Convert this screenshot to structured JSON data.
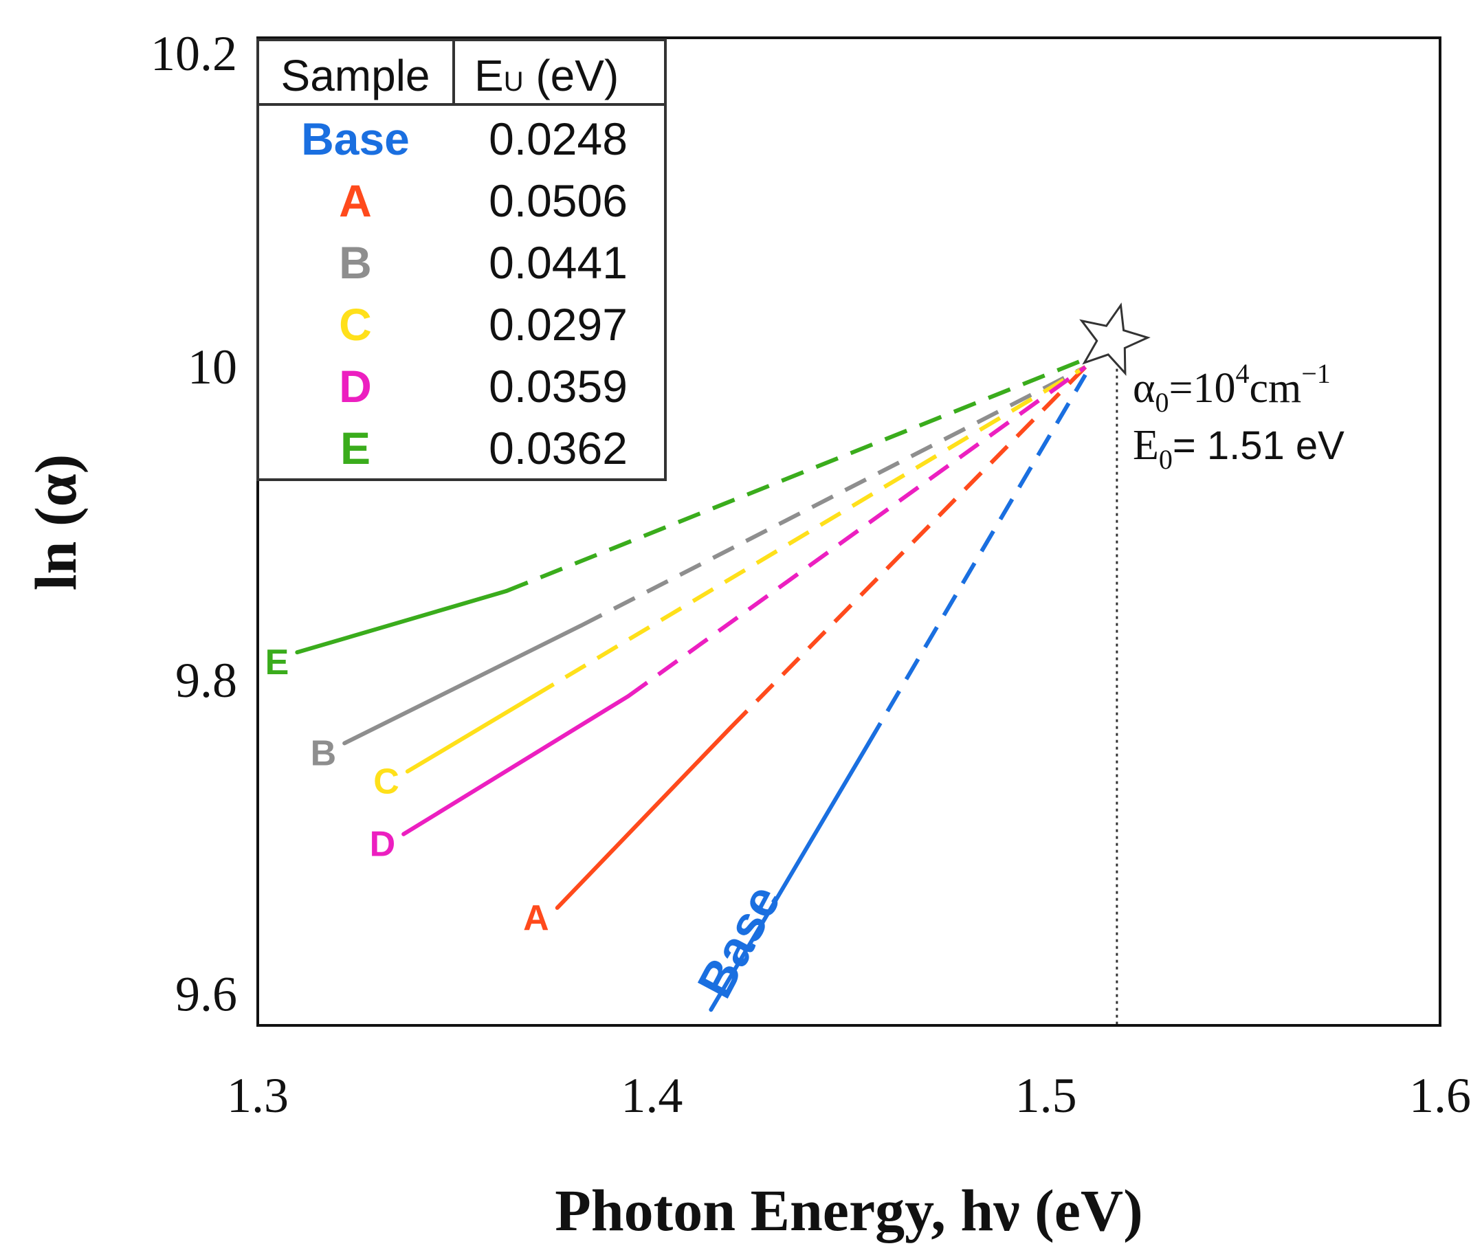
{
  "chart_data": {
    "type": "line",
    "xlabel": "Photon Energy, hν (eV)",
    "ylabel": "ln (α)",
    "xlim": [
      1.3,
      1.6
    ],
    "ylim": [
      9.58,
      10.21
    ],
    "xticks": [
      "1.3",
      "1.4",
      "1.5",
      "1.6"
    ],
    "yticks": [
      "9.6",
      "9.8",
      "10",
      "10.2"
    ],
    "grid": false,
    "legend_table": {
      "header": [
        "Sample",
        "E",
        "U",
        " (eV)"
      ],
      "rows": [
        {
          "name": "Base",
          "value": "0.0248",
          "color": "#1a6fe0"
        },
        {
          "name": "A",
          "value": "0.0506",
          "color": "#ff4a1c"
        },
        {
          "name": "B",
          "value": "0.0441",
          "color": "#8e8e8e"
        },
        {
          "name": "C",
          "value": "0.0297",
          "color": "#ffe01a"
        },
        {
          "name": "D",
          "value": "0.0359",
          "color": "#ec1fc0"
        },
        {
          "name": "E",
          "value": "0.0362",
          "color": "#3aac1c"
        }
      ]
    },
    "series": [
      {
        "name": "Base",
        "color": "#1a6fe0",
        "solid": [
          [
            1.415,
            9.59
          ],
          [
            1.455,
            9.76
          ]
        ],
        "dashed": [
          [
            1.455,
            9.76
          ],
          [
            1.51,
            9.995
          ]
        ]
      },
      {
        "name": "A",
        "color": "#ff4a1c",
        "solid": [
          [
            1.376,
            9.655
          ],
          [
            1.42,
            9.77
          ]
        ],
        "dashed": [
          [
            1.42,
            9.77
          ],
          [
            1.51,
            10.0
          ]
        ]
      },
      {
        "name": "B",
        "color": "#8e8e8e",
        "solid": [
          [
            1.322,
            9.76
          ],
          [
            1.382,
            9.835
          ]
        ],
        "dashed": [
          [
            1.382,
            9.835
          ],
          [
            1.51,
            10.0
          ]
        ]
      },
      {
        "name": "C",
        "color": "#ffe01a",
        "solid": [
          [
            1.338,
            9.742
          ],
          [
            1.37,
            9.79
          ]
        ],
        "dashed": [
          [
            1.37,
            9.79
          ],
          [
            1.51,
            10.0
          ]
        ]
      },
      {
        "name": "D",
        "color": "#ec1fc0",
        "solid": [
          [
            1.337,
            9.702
          ],
          [
            1.394,
            9.79
          ]
        ],
        "dashed": [
          [
            1.394,
            9.79
          ],
          [
            1.51,
            10.0
          ]
        ]
      },
      {
        "name": "E",
        "color": "#3aac1c",
        "solid": [
          [
            1.31,
            9.818
          ],
          [
            1.363,
            9.857
          ]
        ],
        "dashed": [
          [
            1.363,
            9.857
          ],
          [
            1.51,
            10.005
          ]
        ]
      }
    ],
    "vline_x": 1.518,
    "star": {
      "x": 1.515,
      "y": 10.012
    },
    "annotation": {
      "alpha_lhs": "α",
      "alpha_sub": "0",
      "alpha_eq": "=10",
      "alpha_exp": "4",
      "alpha_unit": "cm",
      "alpha_unit_exp": "−1",
      "e_lhs": "E",
      "e_sub": "0",
      "e_rhs": "= 1.51 eV"
    }
  }
}
